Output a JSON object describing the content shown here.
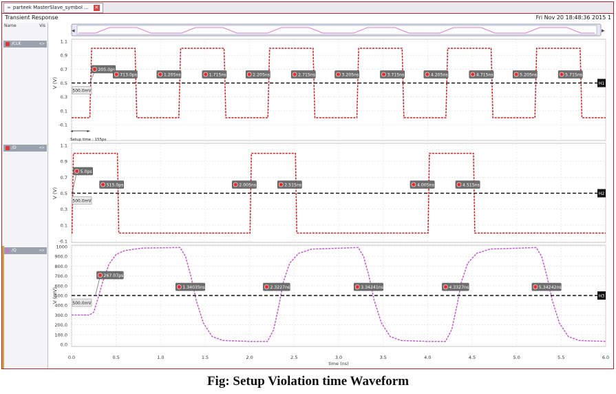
{
  "tab": {
    "label": "parteek MasterSlave_symbol ..."
  },
  "window": {
    "title": "Transient Response",
    "timestamp": "Fri Nov 20 18:48:36 2015  1"
  },
  "sidebar": {
    "header_left": "Name",
    "header_right": "Vis",
    "signals": [
      {
        "name": "/CLK",
        "color": "#d73a3a"
      },
      {
        "name": "/D",
        "color": "#d73a3a"
      },
      {
        "name": "/Q",
        "color": "#c080c8"
      }
    ]
  },
  "colors": {
    "clk": "#d21f1f",
    "d": "#d21f1f",
    "q": "#c45ad0",
    "threshold": "#111111"
  },
  "panels": [
    {
      "id": "clk",
      "tag": "H1",
      "ylabel": "V (V)",
      "yticks": [
        "1.1",
        "0.9",
        "0.7",
        "0.5",
        "0.3",
        "0.1",
        "-0.1"
      ],
      "threshold_label": "500.0mV",
      "markers": [
        "205.0ps",
        "713.0ps",
        "1.205ns",
        "1.715ns",
        "2.205ns",
        "2.715ns",
        "3.205ns",
        "3.715ns",
        "4.205ns",
        "4.715ns",
        "5.205ns",
        "5.715ns"
      ],
      "setup_label": "Setup time : 155ps"
    },
    {
      "id": "d",
      "tag": "H2",
      "ylabel": "V (V)",
      "yticks": [
        "1.1",
        "0.9",
        "0.7",
        "0.5",
        "0.3",
        "0.1",
        "-0.1"
      ],
      "threshold_label": "500.0mV",
      "markers": [
        "5.0ps",
        "515.0ps",
        "2.005ns",
        "2.515ns",
        "4.005ns",
        "4.515ns"
      ]
    },
    {
      "id": "q",
      "tag": "H3",
      "ylabel": "V (mV)",
      "yticks": [
        "1000",
        "900.0",
        "800.0",
        "700.0",
        "600.0",
        "500.0",
        "400.0",
        "300.0",
        "200.0",
        "100.0",
        "0.0"
      ],
      "threshold_label": "500.0mV",
      "markers": [
        "267.07ps",
        "1.34035ns",
        "2.3227ns",
        "3.34241ns",
        "4.3327ns",
        "5.34242ns"
      ]
    }
  ],
  "xaxis": {
    "label": "time (ns)",
    "ticks": [
      "0.0",
      "0.5",
      "1.0",
      "1.5",
      "2.0",
      "2.5",
      "3.0",
      "3.5",
      "4.0",
      "4.5",
      "5.0",
      "5.5",
      "6.0"
    ]
  },
  "caption": "Fig: Setup Violation time Waveform"
}
